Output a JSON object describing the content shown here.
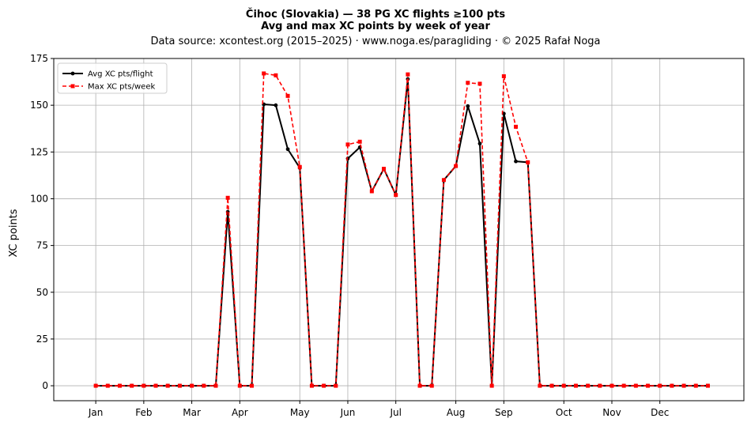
{
  "chart_data": {
    "type": "line",
    "title": "Čihoc (Slovakia)  —  38 PG XC flights ≥100 pts",
    "subtitle": "Avg and max XC points by week of year",
    "source_line": "Data source: xcontest.org (2015–2025)  ·  www.noga.es/paragliding  ·  © 2025 Rafał Noga",
    "xlabel": "",
    "ylabel": "XC points",
    "ylim": [
      -8,
      175
    ],
    "xlim": [
      -3.5,
      54
    ],
    "yticks": [
      0,
      25,
      50,
      75,
      100,
      125,
      150,
      175
    ],
    "xticks": [
      {
        "pos": 0,
        "label": "Jan"
      },
      {
        "pos": 4,
        "label": "Feb"
      },
      {
        "pos": 8,
        "label": "Mar"
      },
      {
        "pos": 12,
        "label": "Apr"
      },
      {
        "pos": 17,
        "label": "May"
      },
      {
        "pos": 21,
        "label": "Jun"
      },
      {
        "pos": 25,
        "label": "Jul"
      },
      {
        "pos": 30,
        "label": "Aug"
      },
      {
        "pos": 34,
        "label": "Sep"
      },
      {
        "pos": 39,
        "label": "Oct"
      },
      {
        "pos": 43,
        "label": "Nov"
      },
      {
        "pos": 47,
        "label": "Dec"
      }
    ],
    "grid": true,
    "legend_position": "top-left",
    "x": [
      0,
      1,
      2,
      3,
      4,
      5,
      6,
      7,
      8,
      9,
      10,
      11,
      12,
      13,
      14,
      15,
      16,
      17,
      18,
      19,
      20,
      21,
      22,
      23,
      24,
      25,
      26,
      27,
      28,
      29,
      30,
      31,
      32,
      33,
      34,
      35,
      36,
      37,
      38,
      39,
      40,
      41,
      42,
      43,
      44,
      45,
      46,
      47,
      48,
      49,
      50,
      51
    ],
    "series": [
      {
        "name": "Avg XC pts/flight",
        "color": "#000000",
        "style": "solid-circle",
        "values": [
          0,
          0,
          0,
          0,
          0,
          0,
          0,
          0,
          0,
          0,
          0,
          93,
          0,
          0,
          150.5,
          150,
          126.5,
          116.5,
          0,
          0,
          0,
          121.5,
          127.5,
          104,
          116,
          102,
          164,
          0,
          0,
          110,
          117.5,
          149.5,
          129.5,
          0,
          145.5,
          120,
          119.5,
          0,
          0,
          0,
          0,
          0,
          0,
          0,
          0,
          0,
          0,
          0,
          0,
          0,
          0,
          0
        ]
      },
      {
        "name": "Max XC pts/week",
        "color": "#ff0000",
        "style": "dashed-square",
        "values": [
          0,
          0,
          0,
          0,
          0,
          0,
          0,
          0,
          0,
          0,
          0,
          100.5,
          0,
          0,
          167,
          166,
          155,
          117,
          0,
          0,
          0,
          129,
          130.5,
          104,
          116,
          102,
          166.5,
          0,
          0,
          110,
          117.5,
          162,
          161.5,
          0,
          165.5,
          138.5,
          119.5,
          0,
          0,
          0,
          0,
          0,
          0,
          0,
          0,
          0,
          0,
          0,
          0,
          0,
          0,
          0
        ]
      }
    ]
  }
}
